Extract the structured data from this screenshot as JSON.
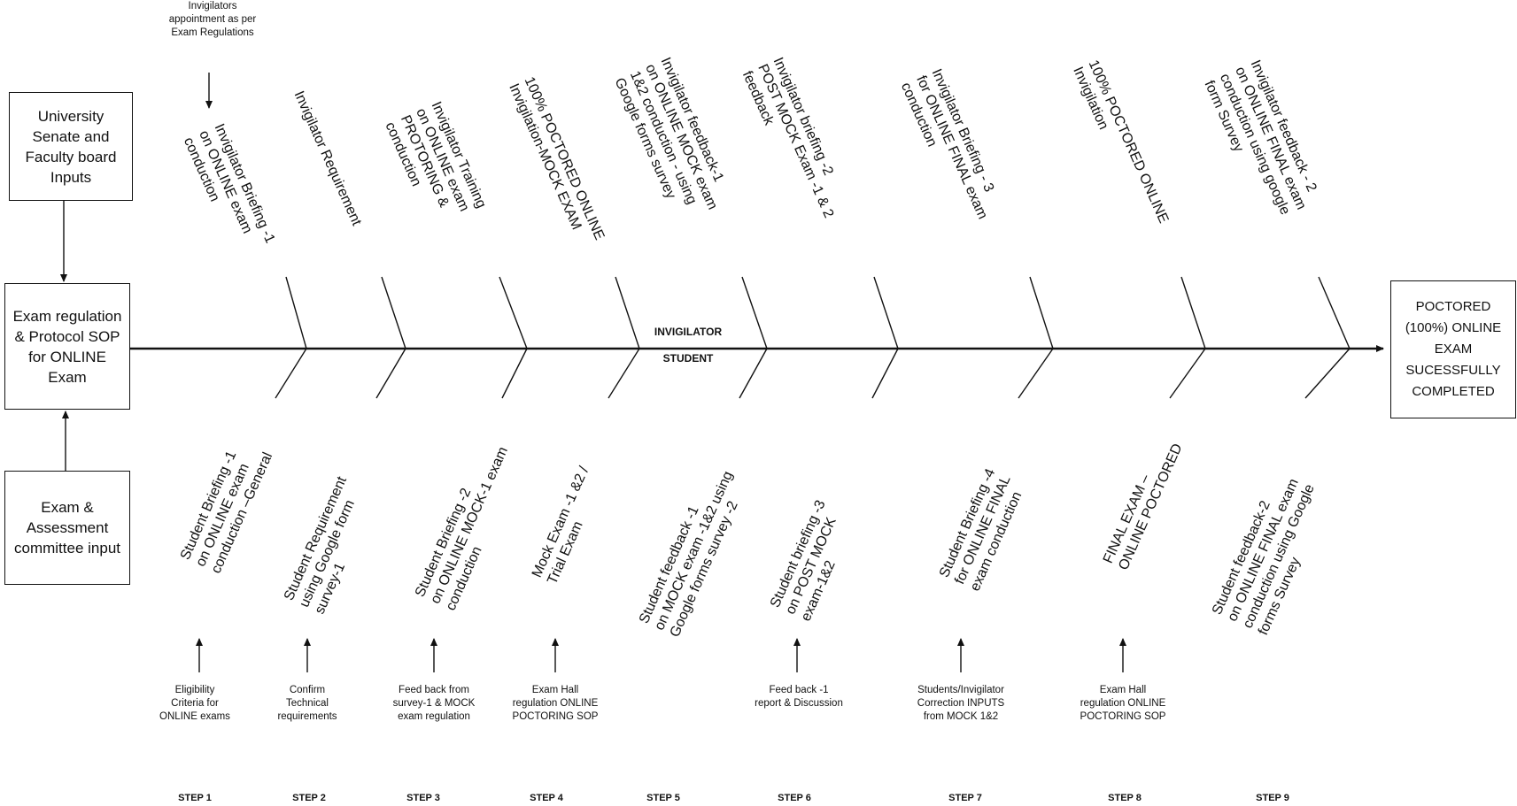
{
  "left_boxes": {
    "senate": "University Senate and Faculty board Inputs",
    "regulation": "Exam regulation & Protocol SOP for ONLINE Exam",
    "assessment": "Exam & Assessment committee input"
  },
  "outcome": "POCTORED (100%) ONLINE EXAM SUCESSFULLY COMPLETED",
  "top_note": "Invigilators appointment as per Exam Regulations",
  "axis": {
    "invigilator": "INVIGILATOR",
    "student": "STUDENT"
  },
  "invigilator_branches": [
    [
      "Invigilator Briefing -1",
      "on ONLINE exam",
      "conduction"
    ],
    [
      "Invigilator Requirement"
    ],
    [
      "Invigilator Training",
      "on ONLINE exam",
      "PROTORING &",
      "conduction"
    ],
    [
      "100% POCTORED ONLINE",
      "Invigilation-MOCK EXAM"
    ],
    [
      "Invigilator feedback-1",
      "on ONLINE MOCK exam",
      "1&2  conduction - using",
      "Google forms survey"
    ],
    [
      "Invigilator briefing -2",
      "POST MOCK Exam -1 & 2",
      "feedback"
    ],
    [
      "Invigilator Briefing - 3",
      "for  ONLINE FINAL exam",
      "conduction"
    ],
    [
      "100% POCTORED ONLINE",
      "Invigilation"
    ],
    [
      "Invigilator feedback - 2",
      "on ONLINE FINAL exam",
      "conduction using google",
      "form  Survey"
    ]
  ],
  "student_branches": [
    [
      "Student Briefing -1",
      "on ONLINE exam",
      "conduction –General"
    ],
    [
      "Student Requirement",
      "using Google form",
      "survey-1"
    ],
    [
      "Student  Briefing -2",
      "on ONLINE MOCK-1 exam",
      "conduction"
    ],
    [
      "Mock Exam -1 &2 /",
      "Trial Exam"
    ],
    [
      "Student  feedback -1",
      "on MOCK exam -1&2  using",
      "Google forms survey -2"
    ],
    [
      "Student briefing -3",
      "on POST MOCK",
      "exam-1&2"
    ],
    [
      "Student  Briefing -4",
      "for  ONLINE FINAL",
      "exam conduction"
    ],
    [
      "FINAL EXAM –",
      "ONLINE POCTORED"
    ],
    [
      "Student feedback-2",
      "on ONLINE FINAL exam",
      "conduction using Google",
      "forms Survey"
    ]
  ],
  "step_inputs": [
    [
      "Eligibility",
      "Criteria for",
      "ONLINE exams"
    ],
    [
      "Confirm",
      "Technical",
      "requirements"
    ],
    [
      "Feed back from",
      "survey-1 & MOCK",
      "exam regulation"
    ],
    [
      "Exam Hall",
      "regulation ONLINE",
      "POCTORING SOP"
    ],
    [],
    [
      "Feed back -1",
      "report & Discussion"
    ],
    [
      "Students/Invigilator",
      "Correction INPUTS",
      "from MOCK 1&2"
    ],
    [
      "Exam Hall",
      "regulation ONLINE",
      "POCTORING SOP"
    ],
    []
  ],
  "steps": [
    "STEP 1",
    "STEP 2",
    "STEP 3",
    "STEP 4",
    "STEP 5",
    "STEP 6",
    "STEP 7",
    "STEP 8",
    "STEP 9"
  ]
}
